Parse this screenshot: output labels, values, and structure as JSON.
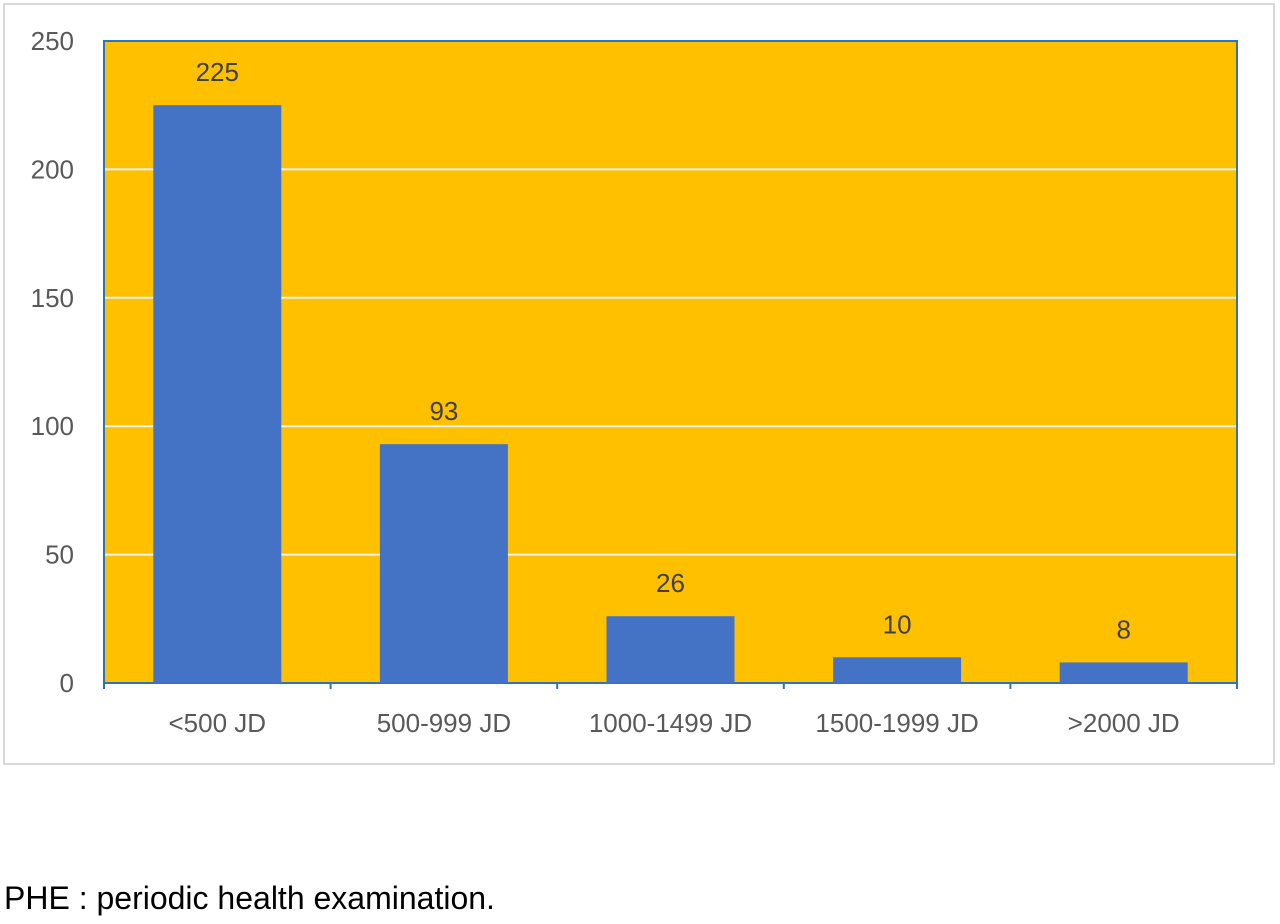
{
  "chart_data": {
    "type": "bar",
    "categories": [
      "<500 JD",
      "500-999 JD",
      "1000-1499 JD",
      "1500-1999 JD",
      ">2000 JD"
    ],
    "values": [
      225,
      93,
      26,
      10,
      8
    ],
    "data_labels": [
      "225",
      "93",
      "26",
      "10",
      "8"
    ],
    "title": "",
    "xlabel": "",
    "ylabel": "",
    "ylim": [
      0,
      250
    ],
    "yticks": [
      0,
      50,
      100,
      150,
      200,
      250
    ],
    "ytick_labels": [
      "0",
      "50",
      "100",
      "150",
      "200",
      "250"
    ],
    "grid": true,
    "legend": "none",
    "colors": {
      "bar": "#4472c4",
      "plot_background": "#ffc000",
      "plot_border": "#2e75b6",
      "gridline": "#f2f2f2",
      "axis_line": "#2e75b6"
    }
  },
  "footnote": "PHE : periodic health examination."
}
